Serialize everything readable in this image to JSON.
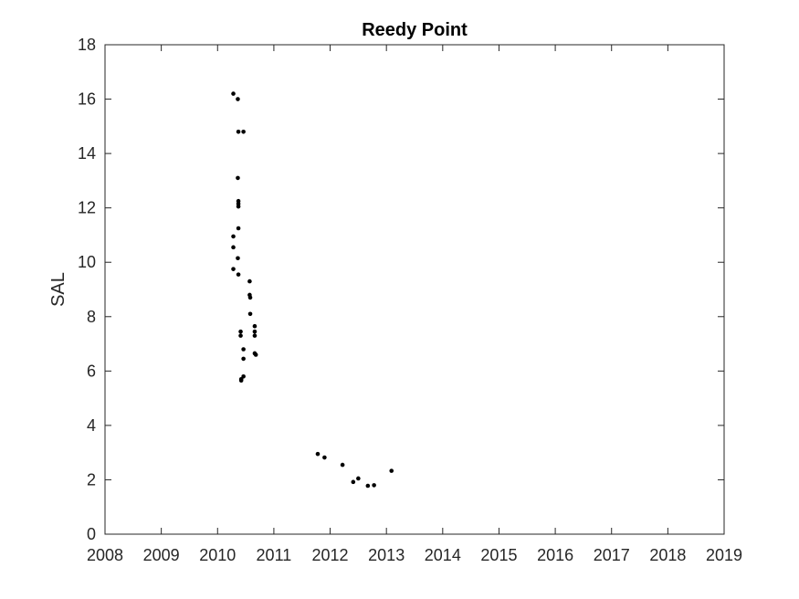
{
  "chart_data": {
    "type": "scatter",
    "title": "Reedy Point",
    "xlabel": "",
    "ylabel": "SAL",
    "xlim": [
      2008,
      2019
    ],
    "ylim": [
      0,
      18
    ],
    "x_ticks": [
      "2008",
      "2009",
      "2010",
      "2011",
      "2012",
      "2013",
      "2014",
      "2015",
      "2016",
      "2017",
      "2018",
      "2019"
    ],
    "y_ticks": [
      "0",
      "2",
      "4",
      "6",
      "8",
      "10",
      "12",
      "14",
      "16",
      "18"
    ],
    "grid": false,
    "marker_color": "#000000",
    "series": [
      {
        "points": [
          [
            2010.28,
            16.2
          ],
          [
            2010.36,
            16.0
          ],
          [
            2010.37,
            14.8
          ],
          [
            2010.46,
            14.8
          ],
          [
            2010.36,
            13.1
          ],
          [
            2010.37,
            12.25
          ],
          [
            2010.37,
            12.15
          ],
          [
            2010.37,
            12.05
          ],
          [
            2010.37,
            11.25
          ],
          [
            2010.28,
            10.95
          ],
          [
            2010.28,
            10.55
          ],
          [
            2010.36,
            10.15
          ],
          [
            2010.28,
            9.75
          ],
          [
            2010.37,
            9.55
          ],
          [
            2010.57,
            9.3
          ],
          [
            2010.57,
            8.8
          ],
          [
            2010.58,
            8.7
          ],
          [
            2010.58,
            8.1
          ],
          [
            2010.66,
            7.65
          ],
          [
            2010.66,
            7.45
          ],
          [
            2010.41,
            7.45
          ],
          [
            2010.41,
            7.3
          ],
          [
            2010.66,
            7.3
          ],
          [
            2010.46,
            6.8
          ],
          [
            2010.66,
            6.65
          ],
          [
            2010.68,
            6.6
          ],
          [
            2010.46,
            6.45
          ],
          [
            2010.46,
            5.8
          ],
          [
            2010.42,
            5.7
          ],
          [
            2010.42,
            5.65
          ],
          [
            2011.78,
            2.95
          ],
          [
            2011.9,
            2.82
          ],
          [
            2012.22,
            2.55
          ],
          [
            2012.5,
            2.05
          ],
          [
            2012.41,
            1.92
          ],
          [
            2012.78,
            1.8
          ],
          [
            2012.67,
            1.78
          ],
          [
            2013.09,
            2.33
          ]
        ]
      }
    ]
  }
}
